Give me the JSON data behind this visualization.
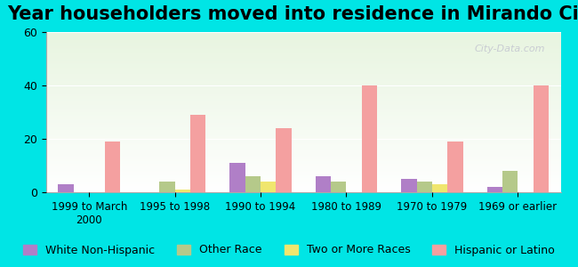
{
  "title": "Year householders moved into residence in Mirando City",
  "categories": [
    "1999 to March\n2000",
    "1995 to 1998",
    "1990 to 1994",
    "1980 to 1989",
    "1970 to 1979",
    "1969 or earlier"
  ],
  "series": {
    "White Non-Hispanic": [
      3,
      0,
      11,
      6,
      5,
      2
    ],
    "Other Race": [
      0,
      4,
      6,
      4,
      4,
      8
    ],
    "Two or More Races": [
      0,
      1,
      4,
      0,
      3,
      0
    ],
    "Hispanic or Latino": [
      19,
      29,
      24,
      40,
      19,
      40
    ]
  },
  "colors": {
    "White Non-Hispanic": "#b07fc7",
    "Other Race": "#b5c98a",
    "Two or More Races": "#f0e66e",
    "Hispanic or Latino": "#f4a0a0"
  },
  "ylim": [
    0,
    60
  ],
  "yticks": [
    0,
    20,
    40,
    60
  ],
  "background_color": "#00e5e5",
  "plot_bg_gradient_top": "#e8f5e0",
  "plot_bg_gradient_bottom": "#ffffff",
  "watermark": "City-Data.com",
  "title_fontsize": 15,
  "bar_width": 0.18,
  "legend_fontsize": 9
}
